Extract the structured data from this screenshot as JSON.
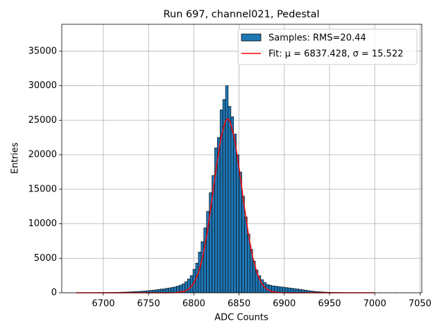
{
  "chart_data": {
    "type": "histogram",
    "title": "Run 697, channel021, Pedestal",
    "x_label": "ADC Counts",
    "y_label": "Entries",
    "xlim": [
      6654,
      7052
    ],
    "ylim": [
      0,
      38900
    ],
    "xticks": [
      6700,
      6750,
      6800,
      6850,
      6900,
      6950,
      7000,
      7050
    ],
    "yticks": [
      0,
      5000,
      10000,
      15000,
      20000,
      25000,
      30000,
      35000
    ],
    "grid": true,
    "legend": "upper right",
    "bins": [
      6670,
      6673,
      6676,
      6679,
      6682,
      6685,
      6688,
      6691,
      6694,
      6697,
      6700,
      6703,
      6706,
      6709,
      6712,
      6715,
      6718,
      6721,
      6724,
      6727,
      6730,
      6733,
      6736,
      6739,
      6742,
      6745,
      6748,
      6751,
      6754,
      6757,
      6760,
      6763,
      6766,
      6769,
      6772,
      6775,
      6778,
      6781,
      6784,
      6787,
      6790,
      6793,
      6796,
      6799,
      6802,
      6805,
      6808,
      6811,
      6814,
      6817,
      6820,
      6823,
      6826,
      6829,
      6832,
      6835,
      6838,
      6841,
      6844,
      6847,
      6850,
      6853,
      6856,
      6859,
      6862,
      6865,
      6868,
      6871,
      6874,
      6877,
      6880,
      6883,
      6886,
      6889,
      6892,
      6895,
      6898,
      6901,
      6904,
      6907,
      6910,
      6913,
      6916,
      6919,
      6922,
      6925,
      6928,
      6931,
      6934,
      6937,
      6940,
      6943,
      6946,
      6949,
      6952,
      6955,
      6958,
      6961,
      6964,
      6967,
      6970,
      6973,
      6976,
      6979,
      6982,
      6985,
      6988,
      6991,
      6994,
      6997,
      7000,
      7003,
      7006,
      7009,
      7012,
      7015,
      7018,
      7021,
      7024,
      7027,
      7030
    ],
    "series": [
      {
        "name": "Samples: RMS=20.44",
        "color": "#1f77b4",
        "edgecolor": "#000000",
        "values": [
          0,
          10,
          0,
          10,
          20,
          10,
          20,
          20,
          30,
          30,
          30,
          40,
          40,
          50,
          60,
          60,
          80,
          90,
          100,
          120,
          140,
          160,
          180,
          200,
          230,
          260,
          300,
          340,
          380,
          430,
          480,
          540,
          560,
          650,
          700,
          780,
          850,
          980,
          1100,
          1300,
          1600,
          2000,
          2500,
          3400,
          4300,
          5900,
          7400,
          9400,
          11800,
          14500,
          17000,
          21000,
          22500,
          26500,
          28000,
          30000,
          27000,
          25500,
          23000,
          20000,
          17500,
          14000,
          11000,
          8500,
          6300,
          4600,
          3300,
          2500,
          1900,
          1500,
          1200,
          1100,
          1000,
          950,
          900,
          850,
          800,
          750,
          700,
          650,
          600,
          550,
          500,
          430,
          380,
          320,
          260,
          220,
          180,
          150,
          120,
          100,
          80,
          70,
          60,
          50,
          40,
          30,
          30,
          20,
          20,
          20,
          10,
          10,
          10,
          10,
          10,
          0,
          10,
          0,
          0,
          10,
          0,
          0,
          0,
          0,
          0,
          10,
          0,
          0
        ]
      },
      {
        "name": "Fit: μ = 6837.428, σ = 15.522",
        "type": "line",
        "color": "#ff0000",
        "x": [
          6670,
          6700,
          6750,
          6770,
          6780,
          6790,
          6795,
          6800,
          6805,
          6810,
          6815,
          6820,
          6825,
          6830,
          6835,
          6837.4,
          6840,
          6845,
          6850,
          6855,
          6860,
          6865,
          6870,
          6875,
          6880,
          6885,
          6890,
          6900,
          6920,
          6950,
          7000
        ],
        "values": [
          0,
          0,
          0,
          2,
          27,
          238,
          603,
          1385,
          2855,
          5300,
          8890,
          13450,
          18320,
          22490,
          24900,
          25200,
          24850,
          22360,
          18120,
          13250,
          8730,
          5190,
          2780,
          1340,
          583,
          229,
          81,
          2,
          0,
          0,
          0
        ]
      }
    ]
  }
}
